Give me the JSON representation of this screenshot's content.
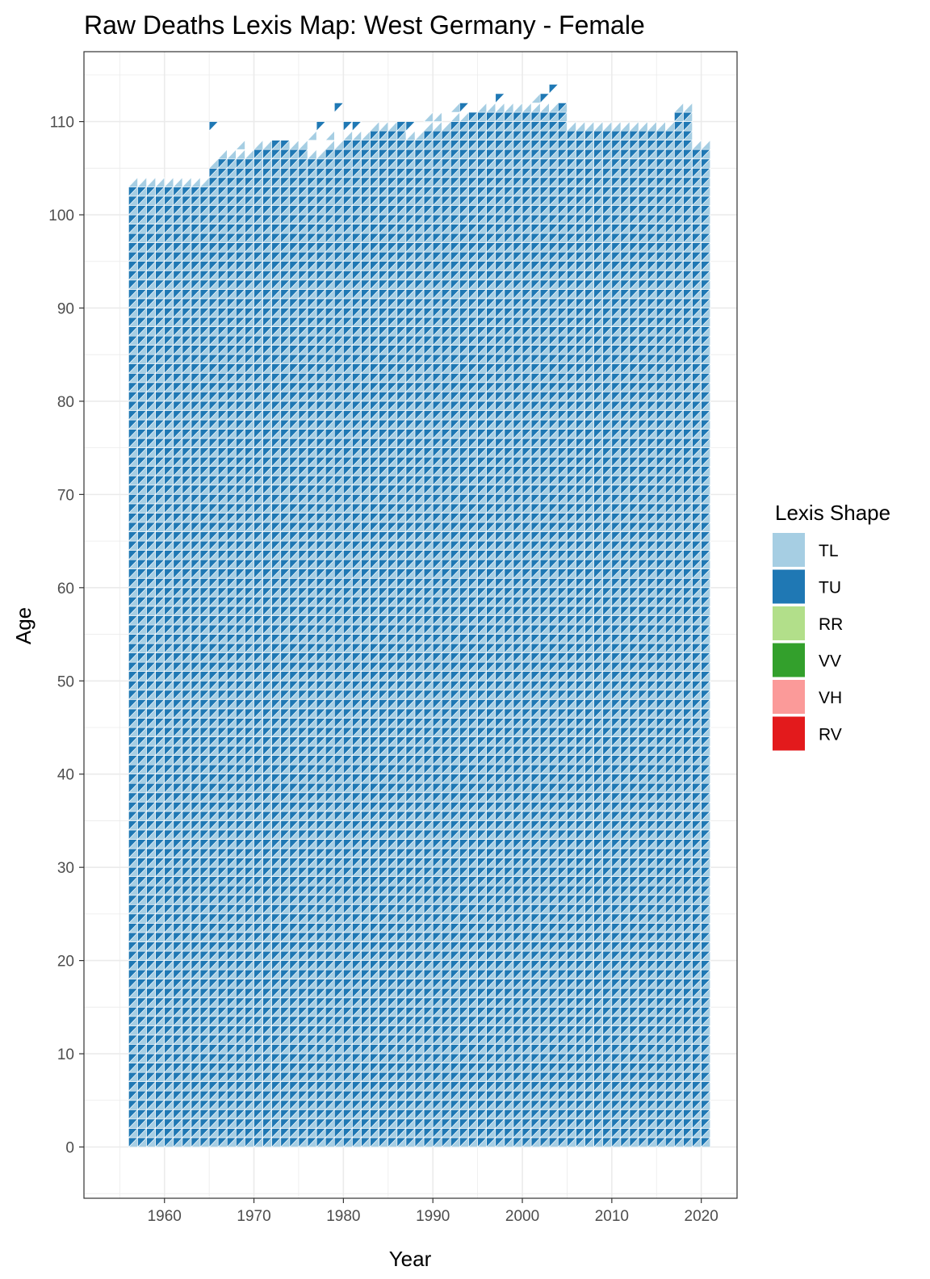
{
  "chart_data": {
    "type": "heatmap",
    "title": "Raw Deaths Lexis Map: West Germany - Female",
    "xlabel": "Year",
    "ylabel": "Age",
    "xlim": [
      1951,
      2024
    ],
    "ylim": [
      -5.5,
      117.5
    ],
    "x_ticks": [
      1960,
      1970,
      1980,
      1990,
      2000,
      2010,
      2020
    ],
    "y_ticks": [
      0,
      10,
      20,
      30,
      40,
      50,
      60,
      70,
      80,
      90,
      100,
      110
    ],
    "grid": true,
    "year_range": [
      1956,
      2020
    ],
    "age_start": 0,
    "max_age_by_year": [
      102,
      102,
      102,
      102,
      102,
      102,
      102,
      102,
      102,
      104,
      105,
      105,
      105,
      105,
      106,
      106,
      106,
      106,
      106,
      106,
      105,
      105,
      106,
      106,
      107,
      107,
      107,
      108,
      108,
      108,
      108,
      107,
      107,
      108,
      108,
      108,
      109,
      109,
      109,
      110,
      110,
      110,
      110,
      110,
      110,
      110,
      110,
      110,
      110,
      108,
      108,
      108,
      108,
      108,
      108,
      108,
      108,
      108,
      108,
      108,
      108,
      110,
      110,
      106,
      106
    ],
    "sparse_cells": [
      {
        "year": 1965,
        "age": 109,
        "shape": "TU"
      },
      {
        "year": 1968,
        "age": 106,
        "shape": "TL"
      },
      {
        "year": 1968,
        "age": 107,
        "shape": "TL"
      },
      {
        "year": 1971,
        "age": 107,
        "shape": "TL"
      },
      {
        "year": 1972,
        "age": 107,
        "shape": "TU"
      },
      {
        "year": 1973,
        "age": 107,
        "shape": "TU"
      },
      {
        "year": 1976,
        "age": 108,
        "shape": "TL"
      },
      {
        "year": 1977,
        "age": 109,
        "shape": "TU"
      },
      {
        "year": 1978,
        "age": 108,
        "shape": "TL"
      },
      {
        "year": 1979,
        "age": 111,
        "shape": "TU"
      },
      {
        "year": 1980,
        "age": 109,
        "shape": "TU"
      },
      {
        "year": 1981,
        "age": 109,
        "shape": "TU"
      },
      {
        "year": 1983,
        "age": 109,
        "shape": "TL"
      },
      {
        "year": 1984,
        "age": 108,
        "shape": "TU"
      },
      {
        "year": 1985,
        "age": 108,
        "shape": "TL"
      },
      {
        "year": 1986,
        "age": 109,
        "shape": "TU"
      },
      {
        "year": 1987,
        "age": 109,
        "shape": "TU"
      },
      {
        "year": 1989,
        "age": 110,
        "shape": "TL"
      },
      {
        "year": 1990,
        "age": 110,
        "shape": "TL"
      },
      {
        "year": 1992,
        "age": 111,
        "shape": "TL"
      },
      {
        "year": 1993,
        "age": 111,
        "shape": "TU"
      },
      {
        "year": 1994,
        "age": 110,
        "shape": "TU"
      },
      {
        "year": 1996,
        "age": 111,
        "shape": "TL"
      },
      {
        "year": 1997,
        "age": 112,
        "shape": "TU"
      },
      {
        "year": 2001,
        "age": 112,
        "shape": "TL"
      },
      {
        "year": 2002,
        "age": 112,
        "shape": "TU"
      },
      {
        "year": 2002,
        "age": 111,
        "shape": "TL"
      },
      {
        "year": 2003,
        "age": 113,
        "shape": "TU"
      },
      {
        "year": 2004,
        "age": 111,
        "shape": "TU"
      }
    ],
    "legend": {
      "title": "Lexis Shape",
      "placement": "right",
      "entries": [
        {
          "label": "TL",
          "color": "#A6CEE3"
        },
        {
          "label": "TU",
          "color": "#1F78B4"
        },
        {
          "label": "RR",
          "color": "#B2DF8A"
        },
        {
          "label": "VV",
          "color": "#33A02C"
        },
        {
          "label": "VH",
          "color": "#FB9A99"
        },
        {
          "label": "RV",
          "color": "#E31A1C"
        }
      ]
    }
  }
}
